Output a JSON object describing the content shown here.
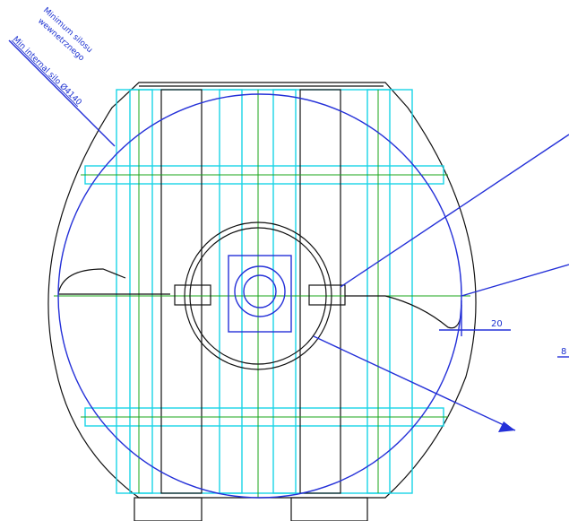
{
  "annotations": {
    "silo_min_pl_line1": "Minimum silosu",
    "silo_min_pl_line2": "wewnetrznego",
    "silo_min_en": "Min internal silo Ø4140",
    "gap_dimension": "20",
    "edge_dimension": "8"
  }
}
